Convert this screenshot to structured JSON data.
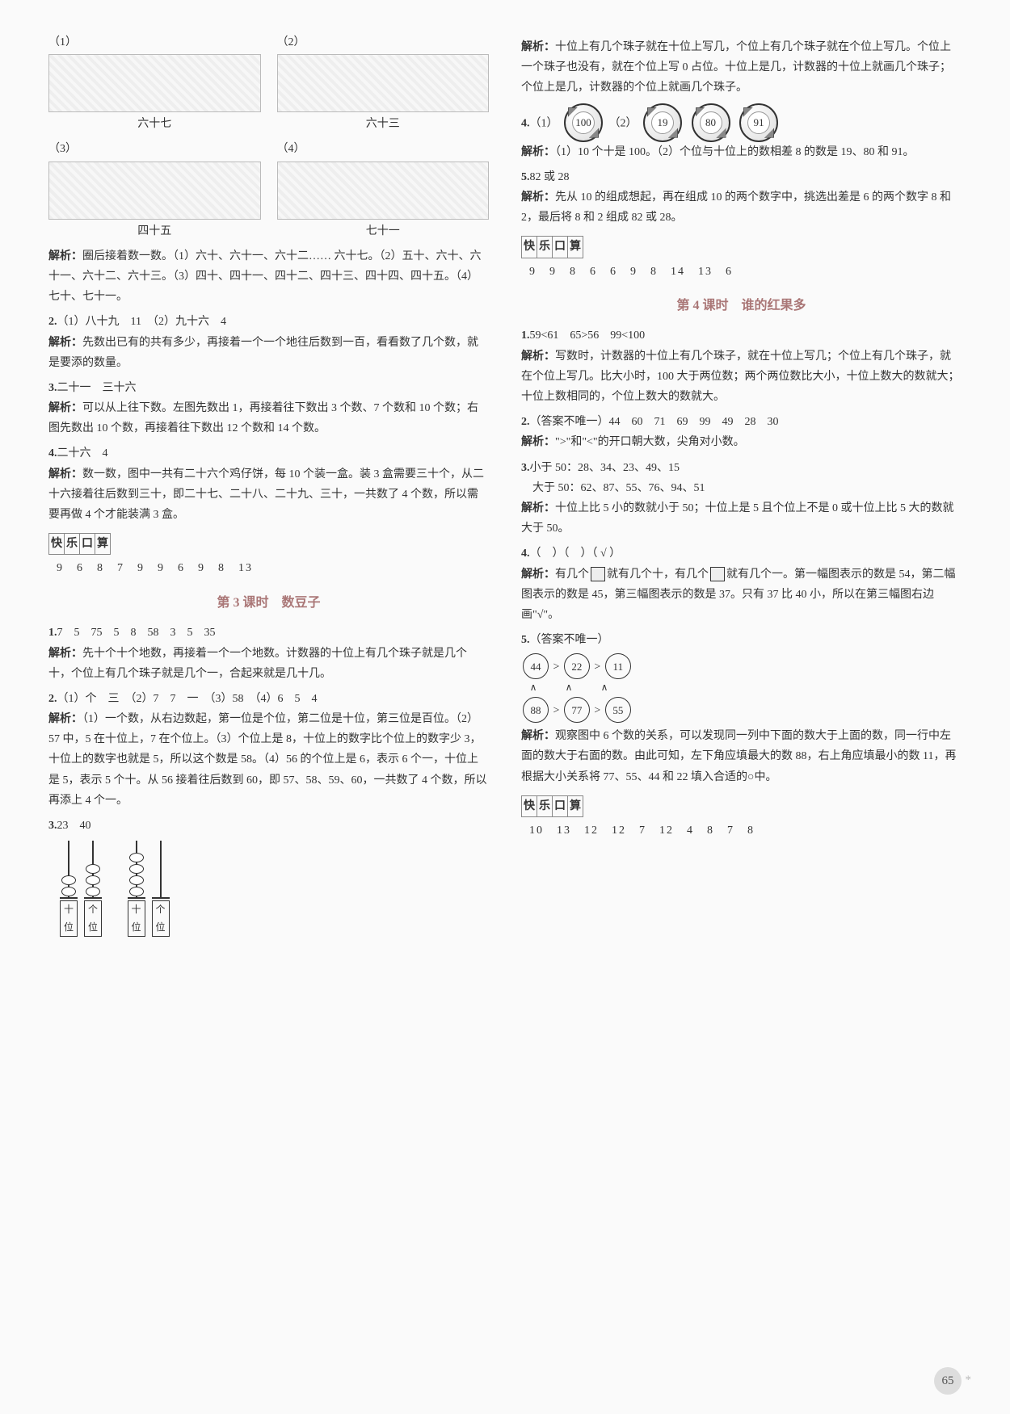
{
  "left": {
    "figs": {
      "r1": [
        {
          "num": "（1）",
          "cap": "六十七"
        },
        {
          "num": "（2）",
          "cap": "六十三"
        }
      ],
      "r2": [
        {
          "num": "（3）",
          "cap": "四十五"
        },
        {
          "num": "（4）",
          "cap": "七十一"
        }
      ]
    },
    "fig_explain_label": "解析：",
    "fig_explain": "圈后接着数一数。（1）六十、六十一、六十二…… 六十七。（2）五十、六十、六十一、六十二、六十三。（3）四十、四十一、四十二、四十三、四十四、四十五。（4）七十、七十一。",
    "q2": {
      "num": "2.",
      "ans": "（1）八十九　11　（2）九十六　4",
      "exp_label": "解析：",
      "exp": "先数出已有的共有多少，再接着一个一个地往后数到一百，看看数了几个数，就是要添的数量。"
    },
    "q3": {
      "num": "3.",
      "ans": "二十一　三十六",
      "exp_label": "解析：",
      "exp": "可以从上往下数。左图先数出 1，再接着往下数出 3 个数、7 个数和 10 个数；右图先数出 10 个数，再接着往下数出 12 个数和 14 个数。"
    },
    "q4": {
      "num": "4.",
      "ans": "二十六　4",
      "exp_label": "解析：",
      "exp": "数一数，图中一共有二十六个鸡仔饼，每 10 个装一盒。装 3 盒需要三十个，从二十六接着往后数到三十，即二十七、二十八、二十九、三十，一共数了 4 个数，所以需要再做 4 个才能装满 3 盒。"
    },
    "kuai_le": {
      "t1": "快",
      "t2": "乐",
      "t3": "口",
      "t4": "算",
      "vals": "9　6　8　7　9　9　6　9　8　13"
    },
    "sec3_title": "第 3 课时　数豆子",
    "s3q1": {
      "num": "1.",
      "ans": "7　5　75　5　8　58　3　5　35",
      "exp_label": "解析：",
      "exp": "先十个十个地数，再接着一个一个地数。计数器的十位上有几个珠子就是几个十，个位上有几个珠子就是几个一，合起来就是几十几。"
    },
    "s3q2": {
      "num": "2.",
      "ans": "（1）个　三　（2）7　7　一　（3）58　（4）6　5　4",
      "exp_label": "解析：",
      "exp": "（1）一个数，从右边数起，第一位是个位，第二位是十位，第三位是百位。（2）57 中，5 在十位上，7 在个位上。（3）个位上是 8，十位上的数字比个位上的数字少 3，十位上的数字也就是 5，所以这个数是 58。（4）56 的个位上是 6，表示 6 个一，十位上是 5，表示 5 个十。从 56 接着往后数到 60，即 57、58、59、60，一共数了 4 个数，所以再添上 4 个一。"
    },
    "s3q3": {
      "num": "3.",
      "ans": "23　40"
    },
    "abacus": [
      {
        "tens": 2,
        "ones": 3,
        "l1": "十位",
        "l2": "个位"
      },
      {
        "tens": 4,
        "ones": 0,
        "l1": "十位",
        "l2": "个位"
      }
    ]
  },
  "right": {
    "top_exp_label": "解析：",
    "top_exp": "十位上有几个珠子就在十位上写几，个位上有几个珠子就在个位上写几。个位上一个珠子也没有，就在个位上写 0 占位。十位上是几，计数器的十位上就画几个珠子；个位上是几，计数器的个位上就画几个珠子。",
    "q4": {
      "num": "4.",
      "p1": "（1）",
      "p2": "（2）",
      "balls": [
        "100",
        "19",
        "80",
        "91"
      ],
      "exp_label": "解析：",
      "exp": "（1）10 个十是 100。（2）个位与十位上的数相差 8 的数是 19、80 和 91。"
    },
    "q5": {
      "num": "5.",
      "ans": "82 或 28",
      "exp_label": "解析：",
      "exp": "先从 10 的组成想起，再在组成 10 的两个数字中，挑选出差是 6 的两个数字 8 和 2，最后将 8 和 2 组成 82 或 28。"
    },
    "kuai_le": {
      "t1": "快",
      "t2": "乐",
      "t3": "口",
      "t4": "算",
      "vals": "9　9　8　6　6　9　8　14　13　6"
    },
    "sec4_title": "第 4 课时　谁的红果多",
    "s4q1": {
      "num": "1.",
      "ans": "59<61　65>56　99<100",
      "exp_label": "解析：",
      "exp": "写数时，计数器的十位上有几个珠子，就在十位上写几；个位上有几个珠子，就在个位上写几。比大小时，100 大于两位数；两个两位数比大小，十位上数大的数就大；十位上数相同的，个位上数大的数就大。"
    },
    "s4q2": {
      "num": "2.",
      "ans": "（答案不唯一）44　60　71　69　99　49　28　30",
      "exp_label": "解析：",
      "exp": "\">\"和\"<\"的开口朝大数，尖角对小数。"
    },
    "s4q3": {
      "num": "3.",
      "l1": "小于 50：28、34、23、49、15",
      "l2": "大于 50：62、87、55、76、94、51",
      "exp_label": "解析：",
      "exp": "十位上比 5 小的数就小于 50；十位上是 5 且个位上不是 0 或十位上比 5 大的数就大于 50。"
    },
    "s4q4": {
      "num": "4.",
      "ans": "（　）（　）（ √ ）",
      "exp_label": "解析：",
      "exp_a": "有几个",
      "exp_b": "就有几个十，有几个",
      "exp_c": "就有几个一。第一幅图表示的数是 54，第二幅图表示的数是 45，第三幅图表示的数是 37。只有 37 比 40 小，所以在第三幅图右边画\"√\"。"
    },
    "s4q5": {
      "num": "5.",
      "ans": "（答案不唯一）",
      "row1": [
        "44",
        "22",
        "11"
      ],
      "row2": [
        "88",
        "77",
        "55"
      ],
      "gt": ">",
      "caret": "∧",
      "exp_label": "解析：",
      "exp": "观察图中 6 个数的关系，可以发现同一列中下面的数大于上面的数，同一行中左面的数大于右面的数。由此可知，左下角应填最大的数 88，右上角应填最小的数 11，再根据大小关系将 77、55、44 和 22 填入合适的○中。"
    },
    "kuai_le2": {
      "t1": "快",
      "t2": "乐",
      "t3": "口",
      "t4": "算",
      "vals": "10　13　12　12　7　12　4　8　7　8"
    }
  },
  "pagenum": "65"
}
